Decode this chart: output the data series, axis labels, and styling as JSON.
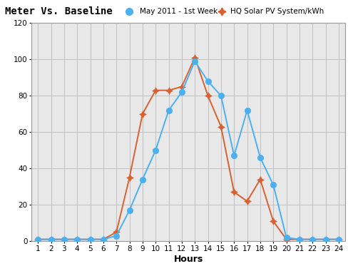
{
  "title": "Meter Vs. Baseline",
  "legend1": "May 2011 - 1st Week",
  "legend2": "HQ Solar PV System/kWh",
  "xlabel": "Hours",
  "xlim": [
    0.5,
    24.5
  ],
  "ylim": [
    0,
    120
  ],
  "yticks": [
    0,
    20,
    40,
    60,
    80,
    100,
    120
  ],
  "xticks": [
    1,
    2,
    3,
    4,
    5,
    6,
    7,
    8,
    9,
    10,
    11,
    12,
    13,
    14,
    15,
    16,
    17,
    18,
    19,
    20,
    21,
    22,
    23,
    24
  ],
  "blue_x": [
    1,
    2,
    3,
    4,
    5,
    6,
    7,
    8,
    9,
    10,
    11,
    12,
    13,
    14,
    15,
    16,
    17,
    18,
    19,
    20,
    21,
    22,
    23,
    24
  ],
  "blue_y": [
    1,
    1,
    1,
    1,
    1,
    1,
    3,
    17,
    34,
    50,
    72,
    82,
    99,
    88,
    80,
    47,
    72,
    46,
    31,
    2,
    1,
    1,
    1,
    1
  ],
  "orange_x": [
    1,
    2,
    3,
    4,
    5,
    6,
    7,
    8,
    9,
    10,
    11,
    12,
    13,
    14,
    15,
    16,
    17,
    18,
    19,
    20,
    21,
    22,
    23,
    24
  ],
  "orange_y": [
    1,
    1,
    1,
    1,
    1,
    1,
    5,
    35,
    70,
    83,
    83,
    85,
    101,
    80,
    63,
    27,
    22,
    34,
    11,
    1,
    1,
    1,
    1,
    1
  ],
  "blue_color": "#4ab0f0",
  "orange_color": "#d96030",
  "title_bg_top": "#c8c860",
  "title_bg_bot": "#b8b840",
  "plot_bg": "#e8e8e8",
  "grid_color": "#c0c0c0",
  "border_color": "#999999",
  "tick_fontsize": 7.5,
  "xlabel_fontsize": 9,
  "title_fontsize": 10,
  "legend_fontsize": 7.5
}
